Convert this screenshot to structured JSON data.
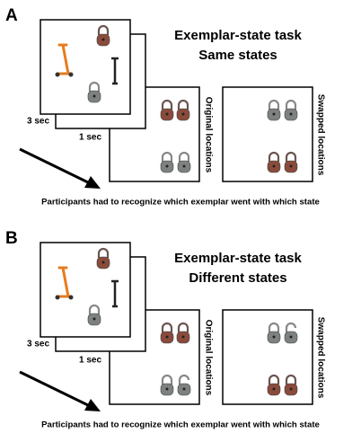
{
  "panels": [
    {
      "letter": "A",
      "title": [
        "Exemplar-state task",
        "Same states"
      ],
      "timing": [
        "3 sec",
        "1 sec"
      ],
      "labels": [
        "Original locations",
        "Swapped locations"
      ],
      "caption": "Participants had to recognize which exemplar went with which state"
    },
    {
      "letter": "B",
      "title": [
        "Exemplar-state task",
        "Different states"
      ],
      "timing": [
        "3 sec",
        "1 sec"
      ],
      "labels": [
        "Original locations",
        "Swapped locations"
      ],
      "caption": "Participants had to recognize which exemplar went with which state"
    }
  ]
}
